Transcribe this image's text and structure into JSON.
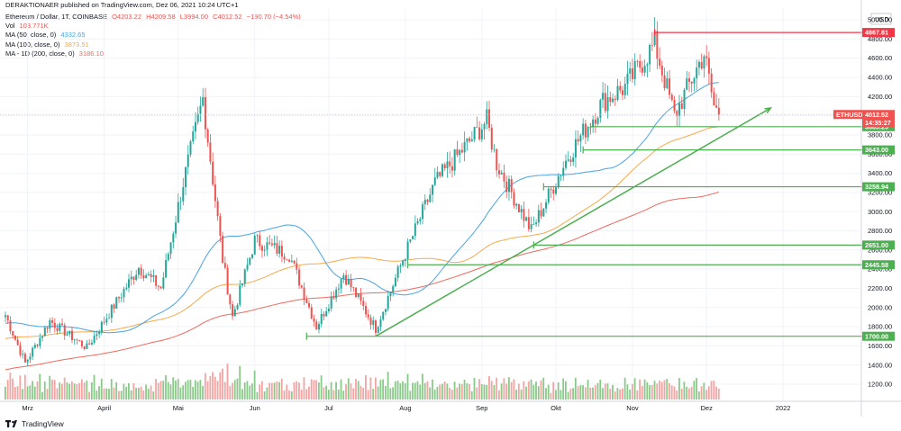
{
  "header": {
    "published_line": "DERAKTIONAER published on TradingView.com, Dez 06, 2021 10:24 UTC+1"
  },
  "legend": {
    "symbol_line": {
      "label": "Ethereum / Dollar, 1T, COINBASE",
      "o": "O4203.22",
      "h": "H4209.58",
      "l": "L3994.00",
      "c": "C4012.52",
      "chg": "−190.70 (−4.54%)"
    },
    "vol": {
      "label": "Vol",
      "value": "103.771K"
    },
    "ma50": {
      "label": "MA (50, close, 0)",
      "value": "4332.65"
    },
    "ma100": {
      "label": "MA (100, close, 0)",
      "value": "3873.51"
    },
    "ma200": {
      "label": "MA - 1D (200, close, 0)",
      "value": "3186.10"
    }
  },
  "colors": {
    "up": "#26a69a",
    "down": "#ef5350",
    "vol_up": "#8bc98a",
    "vol_down": "#f2a5a3",
    "ma50": "#4aa3df",
    "ma100": "#f7a94a",
    "ma200": "#ee6a5e",
    "support": "#4caf50",
    "resistance": "#f23645",
    "trend": "#4caf50",
    "grid": "#f0f3fa"
  },
  "footer": {
    "brand": "TradingView"
  },
  "chart_data": {
    "type": "candlestick",
    "symbol": "ETHUSD",
    "currency": "USD",
    "y_axis_ticks": [
      1200,
      1400,
      1600,
      1800,
      2000,
      2200,
      2400,
      2600,
      2800,
      3000,
      3200,
      3400,
      3600,
      3800,
      4000,
      4200,
      4400,
      4600,
      4800,
      5000
    ],
    "y_axis_tick_labels": [
      "1200.00",
      "1400.00",
      "1600.00",
      "1800.00",
      "2000.00",
      "2200.00",
      "2400.00",
      "2600.00",
      "2800.00",
      "3000.00",
      "3200.00",
      "3400.00",
      "3600.00",
      "3800.00",
      "4000.00",
      "4200.00",
      "4400.00",
      "4600.00",
      "4800.00",
      "5000.00"
    ],
    "x_axis_labels": [
      "Mrz",
      "April",
      "Mai",
      "Jun",
      "Jul",
      "Aug",
      "Sep",
      "Okt",
      "Nov",
      "Dez",
      "2022"
    ],
    "price_path_anchors": [
      {
        "date": "2021-02-20",
        "close": 1920
      },
      {
        "date": "2021-02-28",
        "close": 1420
      },
      {
        "date": "2021-03-10",
        "close": 1860
      },
      {
        "date": "2021-03-25",
        "close": 1580
      },
      {
        "date": "2021-04-15",
        "close": 2420
      },
      {
        "date": "2021-04-24",
        "close": 2200
      },
      {
        "date": "2021-05-03",
        "close": 3300
      },
      {
        "date": "2021-05-11",
        "close": 4180
      },
      {
        "date": "2021-05-19",
        "close": 2500
      },
      {
        "date": "2021-05-23",
        "close": 1900
      },
      {
        "date": "2021-06-01",
        "close": 2700
      },
      {
        "date": "2021-06-15",
        "close": 2550
      },
      {
        "date": "2021-06-26",
        "close": 1800
      },
      {
        "date": "2021-07-07",
        "close": 2350
      },
      {
        "date": "2021-07-20",
        "close": 1780
      },
      {
        "date": "2021-07-31",
        "close": 2500
      },
      {
        "date": "2021-08-13",
        "close": 3300
      },
      {
        "date": "2021-09-03",
        "close": 3950
      },
      {
        "date": "2021-09-07",
        "close": 3500
      },
      {
        "date": "2021-09-21",
        "close": 2800
      },
      {
        "date": "2021-10-06",
        "close": 3580
      },
      {
        "date": "2021-10-20",
        "close": 4150
      },
      {
        "date": "2021-10-29",
        "close": 4300
      },
      {
        "date": "2021-11-10",
        "close": 4750
      },
      {
        "date": "2021-11-18",
        "close": 4000
      },
      {
        "date": "2021-11-30",
        "close": 4650
      },
      {
        "date": "2021-12-04",
        "close": 4100
      },
      {
        "date": "2021-12-06",
        "close": 4012.52
      }
    ],
    "horizontal_levels": [
      {
        "value": 4867.81,
        "label": "4867.81",
        "kind": "resistance",
        "from_date": "2021-11-10"
      },
      {
        "value": 3885.25,
        "label": "3885.25",
        "kind": "support",
        "from_date": "2021-10-15"
      },
      {
        "value": 3643.0,
        "label": "3643.00",
        "kind": "support",
        "from_date": "2021-10-12"
      },
      {
        "value": 3258.94,
        "label": "3258.94",
        "kind": "support",
        "from_date": "2021-09-26"
      },
      {
        "value": 2651.0,
        "label": "2651.00",
        "kind": "support",
        "from_date": "2021-09-22"
      },
      {
        "value": 2445.58,
        "label": "2445.58",
        "kind": "support",
        "from_date": "2021-08-02"
      },
      {
        "value": 1700.0,
        "label": "1700.00",
        "kind": "support",
        "from_date": "2021-06-22"
      }
    ],
    "trendline": {
      "from": {
        "date": "2021-07-20",
        "value": 1700
      },
      "to": {
        "date": "2021-12-27",
        "value": 4080
      }
    },
    "last_price": {
      "symbol": "ETHUSD",
      "value": "4012.52",
      "countdown": "14:35:27"
    }
  }
}
